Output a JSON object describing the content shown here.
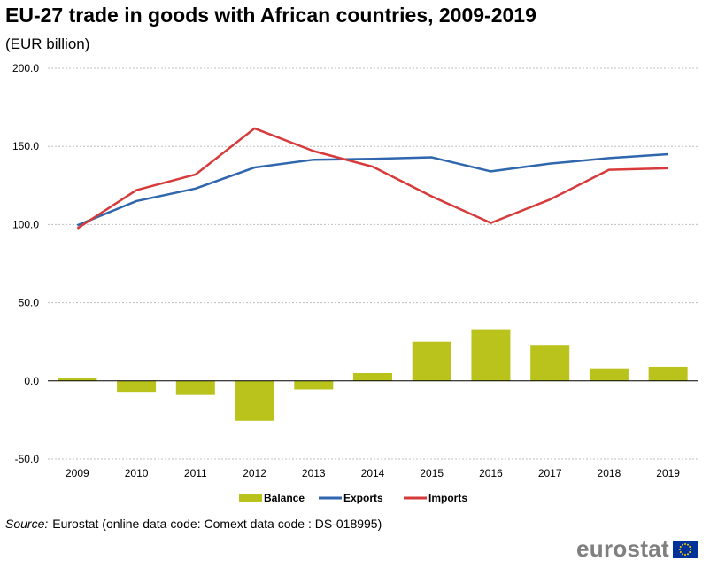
{
  "title": "EU-27 trade in goods with African countries, 2009-2019",
  "subtitle": "(EUR billion)",
  "source_label": "Source:",
  "source_text": "Eurostat (online data code: Comext data code : DS-018995)",
  "logo_text": "eurostat",
  "chart_data": {
    "type": "bar+line",
    "categories": [
      "2009",
      "2010",
      "2011",
      "2012",
      "2013",
      "2014",
      "2015",
      "2016",
      "2017",
      "2018",
      "2019"
    ],
    "y_ticks": [
      "200.0",
      "150.0",
      "100.0",
      "50.0",
      "0.0",
      "-50.0"
    ],
    "ylim": [
      -50,
      200
    ],
    "grid": true,
    "legend_position": "bottom",
    "series": [
      {
        "name": "Balance",
        "type": "bar",
        "color": "#b9c31b",
        "values": [
          2.0,
          -7.0,
          -9.0,
          -25.5,
          -5.5,
          5.0,
          25.0,
          33.0,
          23.0,
          8.0,
          9.0
        ]
      },
      {
        "name": "Exports",
        "type": "line",
        "color": "#2f66ad",
        "values": [
          99.5,
          115.0,
          123.0,
          136.5,
          141.5,
          142.0,
          143.0,
          134.0,
          139.0,
          142.5,
          145.0
        ]
      },
      {
        "name": "Imports",
        "type": "line",
        "color": "#d73a3a",
        "values": [
          97.5,
          122.0,
          132.0,
          161.5,
          147.0,
          137.0,
          118.0,
          101.0,
          116.0,
          135.0,
          136.0
        ]
      }
    ]
  }
}
